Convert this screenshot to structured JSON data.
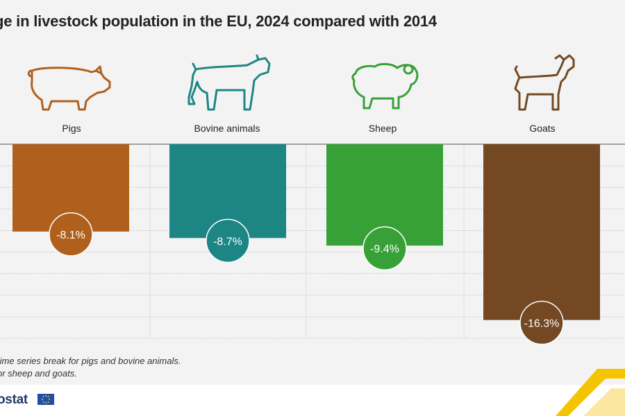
{
  "title": "ge in livestock population in the EU, 2024 compared with 2014",
  "notes": [
    "time series break for pigs and bovine animals.",
    "or sheep and goats."
  ],
  "logo": {
    "text": "ostat"
  },
  "chart_data": {
    "type": "bar",
    "title": "ge in livestock population in the EU, 2024 compared with 2014",
    "categories": [
      "Pigs",
      "Bovine animals",
      "Sheep",
      "Goats"
    ],
    "values": [
      -8.1,
      -8.7,
      -9.4,
      -16.3
    ],
    "value_labels": [
      "-8.1%",
      "-8.7%",
      "-9.4%",
      "-16.3%"
    ],
    "colors": [
      "#b0601d",
      "#1e8585",
      "#37a137",
      "#734822"
    ],
    "icons": [
      "pig-icon",
      "cow-icon",
      "sheep-icon",
      "goat-icon"
    ],
    "ylim": [
      -18,
      0
    ],
    "grid": true,
    "xlabel": "",
    "ylabel": ""
  }
}
